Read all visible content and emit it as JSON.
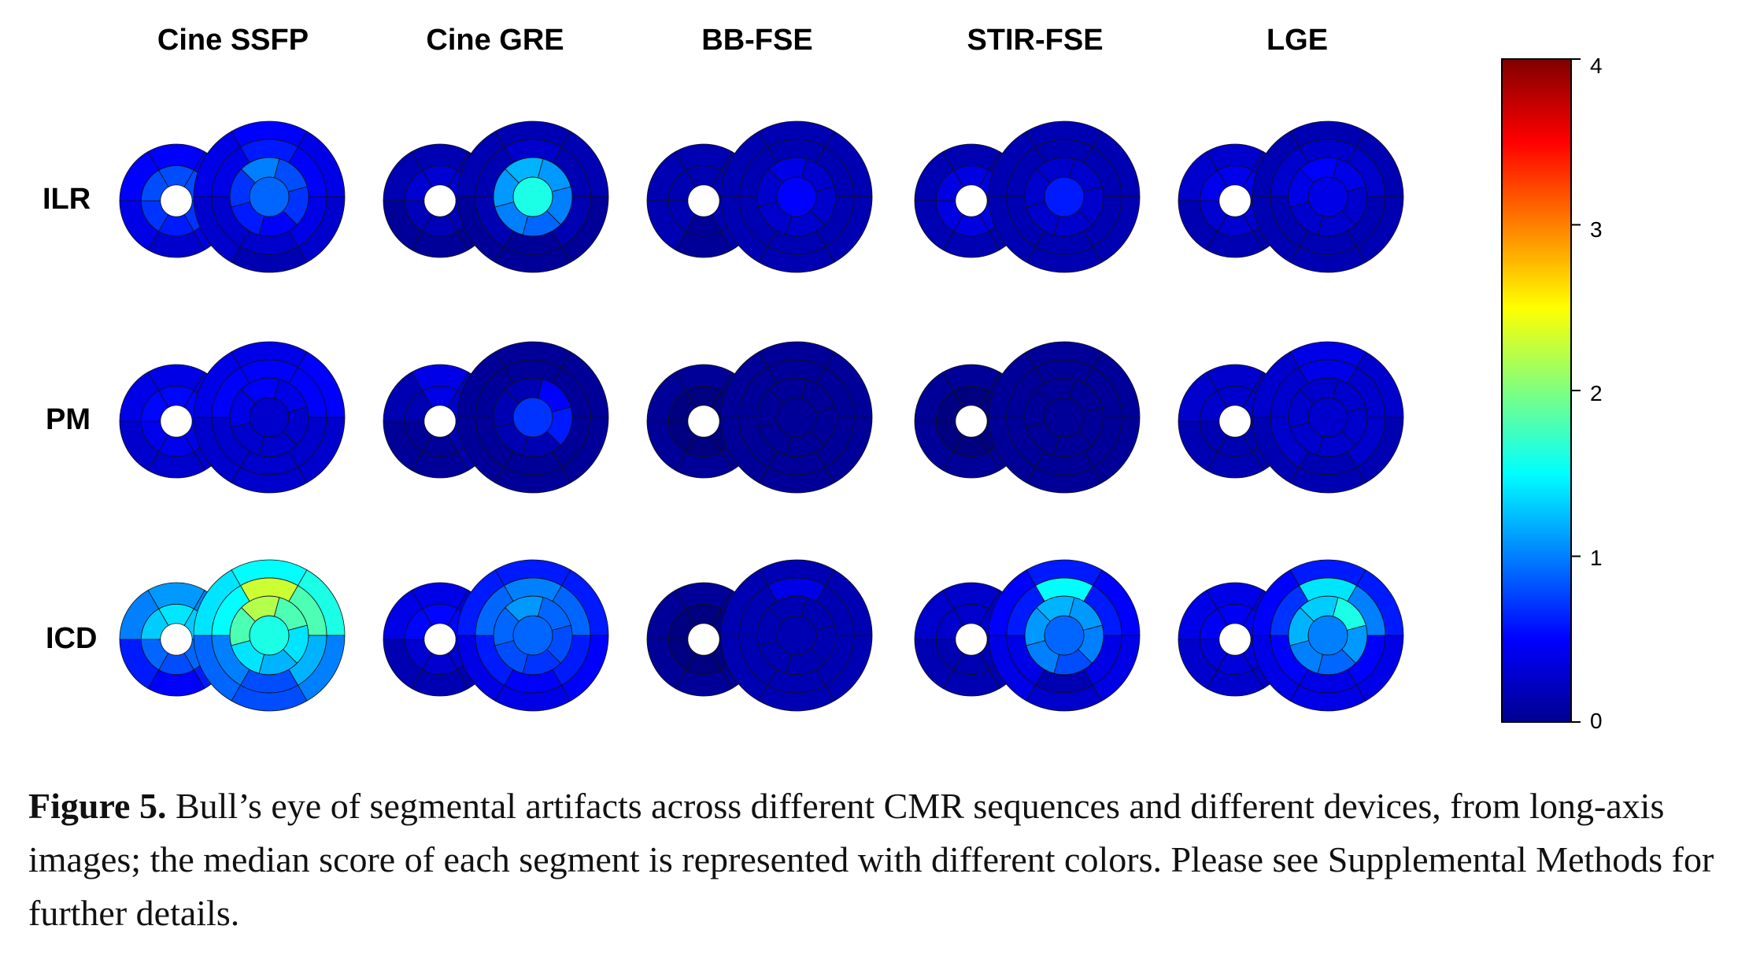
{
  "figure": {
    "column_labels": [
      "Cine SSFP",
      "Cine GRE",
      "BB-FSE",
      "STIR-FSE",
      "LGE"
    ],
    "row_labels": [
      "ILR",
      "PM",
      "ICD"
    ]
  },
  "colorbar": {
    "min": 0,
    "max": 4,
    "ticks": [
      "4",
      "3",
      "2",
      "1",
      "0"
    ],
    "colormap": "jet"
  },
  "chart_data": {
    "type": "heatmap",
    "description_source": "median artifact score per segment (short small disk = basal/outer plot, large disk = mid/apical plot)",
    "scale": [
      0,
      4
    ],
    "rows": [
      "ILR",
      "PM",
      "ICD"
    ],
    "columns": [
      "Cine SSFP",
      "Cine GRE",
      "BB-FSE",
      "STIR-FSE",
      "LGE"
    ],
    "cells": [
      [
        {
          "small": {
            "inner": 0.8,
            "ring": [
              0.5,
              0.5,
              0.4,
              0.3,
              0.4,
              0.5
            ]
          },
          "large": {
            "center": 0.9,
            "inner": [
              1.0,
              0.8,
              0.7,
              0.5,
              0.6,
              0.7
            ],
            "mid": [
              0.6,
              0.5,
              0.4,
              0.3,
              0.3,
              0.4
            ],
            "outer": [
              0.5,
              0.4,
              0.3,
              0.2,
              0.3,
              0.4
            ]
          }
        },
        {
          "small": {
            "inner": 0.5,
            "ring": [
              0.2,
              0.2,
              0.1,
              0.1,
              0.1,
              0.2
            ]
          },
          "large": {
            "center": 1.6,
            "inner": [
              1.2,
              1.1,
              1.0,
              0.9,
              1.0,
              1.1
            ],
            "mid": [
              0.3,
              0.2,
              0.2,
              0.1,
              0.2,
              0.2
            ],
            "outer": [
              0.2,
              0.2,
              0.1,
              0.1,
              0.1,
              0.2
            ]
          }
        },
        {
          "small": {
            "inner": 0.3,
            "ring": [
              0.2,
              0.2,
              0.2,
              0.1,
              0.2,
              0.2
            ]
          },
          "large": {
            "center": 0.5,
            "inner": [
              0.4,
              0.3,
              0.3,
              0.3,
              0.3,
              0.3
            ],
            "mid": [
              0.2,
              0.2,
              0.2,
              0.2,
              0.2,
              0.2
            ],
            "outer": [
              0.2,
              0.2,
              0.2,
              0.2,
              0.2,
              0.2
            ]
          }
        },
        {
          "small": {
            "inner": 0.6,
            "ring": [
              0.2,
              0.2,
              0.2,
              0.2,
              0.2,
              0.2
            ]
          },
          "large": {
            "center": 0.6,
            "inner": [
              0.3,
              0.3,
              0.3,
              0.3,
              0.3,
              0.3
            ],
            "mid": [
              0.2,
              0.2,
              0.2,
              0.2,
              0.2,
              0.2
            ],
            "outer": [
              0.2,
              0.2,
              0.2,
              0.2,
              0.2,
              0.2
            ]
          }
        },
        {
          "small": {
            "inner": 0.5,
            "ring": [
              0.3,
              0.3,
              0.2,
              0.2,
              0.2,
              0.3
            ]
          },
          "large": {
            "center": 0.4,
            "inner": [
              0.5,
              0.4,
              0.3,
              0.3,
              0.3,
              0.4
            ],
            "mid": [
              0.3,
              0.3,
              0.2,
              0.2,
              0.2,
              0.3
            ],
            "outer": [
              0.2,
              0.2,
              0.2,
              0.2,
              0.2,
              0.2
            ]
          }
        }
      ],
      [
        {
          "small": {
            "inner": 0.5,
            "ring": [
              0.4,
              0.4,
              0.3,
              0.3,
              0.3,
              0.4
            ]
          },
          "large": {
            "center": 0.3,
            "inner": [
              0.5,
              0.4,
              0.3,
              0.3,
              0.3,
              0.4
            ],
            "mid": [
              0.5,
              0.5,
              0.3,
              0.3,
              0.3,
              0.5
            ],
            "outer": [
              0.4,
              0.5,
              0.3,
              0.3,
              0.3,
              0.4
            ]
          }
        },
        {
          "small": {
            "inner": 0.3,
            "ring": [
              0.4,
              0.3,
              0.2,
              0.1,
              0.1,
              0.2
            ]
          },
          "large": {
            "center": 0.7,
            "inner": [
              0.2,
              0.5,
              0.6,
              0.2,
              0.2,
              0.2
            ],
            "mid": [
              0.1,
              0.1,
              0.1,
              0.1,
              0.1,
              0.1
            ],
            "outer": [
              0.1,
              0.1,
              0.1,
              0.1,
              0.1,
              0.1
            ]
          }
        },
        {
          "small": {
            "inner": 0.1,
            "ring": [
              0.1,
              0.1,
              0.1,
              0.1,
              0.1,
              0.1
            ]
          },
          "large": {
            "center": 0.1,
            "inner": [
              0.1,
              0.1,
              0.1,
              0.1,
              0.1,
              0.1
            ],
            "mid": [
              0.1,
              0.1,
              0.1,
              0.1,
              0.1,
              0.1
            ],
            "outer": [
              0.1,
              0.1,
              0.1,
              0.1,
              0.1,
              0.1
            ]
          }
        },
        {
          "small": {
            "inner": 0.1,
            "ring": [
              0.1,
              0.1,
              0.1,
              0.1,
              0.1,
              0.1
            ]
          },
          "large": {
            "center": 0.1,
            "inner": [
              0.1,
              0.1,
              0.1,
              0.1,
              0.1,
              0.1
            ],
            "mid": [
              0.1,
              0.1,
              0.1,
              0.1,
              0.1,
              0.1
            ],
            "outer": [
              0.1,
              0.1,
              0.1,
              0.1,
              0.1,
              0.1
            ]
          }
        },
        {
          "small": {
            "inner": 0.3,
            "ring": [
              0.3,
              0.3,
              0.2,
              0.2,
              0.2,
              0.3
            ]
          },
          "large": {
            "center": 0.3,
            "inner": [
              0.3,
              0.3,
              0.3,
              0.3,
              0.3,
              0.3
            ],
            "mid": [
              0.4,
              0.3,
              0.3,
              0.2,
              0.3,
              0.3
            ],
            "outer": [
              0.4,
              0.3,
              0.2,
              0.2,
              0.2,
              0.3
            ]
          }
        }
      ],
      [
        {
          "small": {
            "inner": 0.8,
            "ring": [
              1.1,
              1.0,
              0.6,
              0.5,
              0.6,
              1.0
            ]
          },
          "large": {
            "center": 1.6,
            "inner": [
              2.2,
              1.8,
              1.4,
              1.2,
              1.4,
              1.8
            ],
            "mid": [
              2.3,
              1.8,
              1.2,
              0.8,
              1.0,
              1.5
            ],
            "outer": [
              1.5,
              1.6,
              1.0,
              0.8,
              0.9,
              1.4
            ]
          }
        },
        {
          "small": {
            "inner": 0.5,
            "ring": [
              0.4,
              0.4,
              0.2,
              0.2,
              0.2,
              0.4
            ]
          },
          "large": {
            "center": 0.9,
            "inner": [
              1.1,
              0.9,
              0.8,
              0.7,
              0.8,
              0.9
            ],
            "mid": [
              1.0,
              0.9,
              0.6,
              0.5,
              0.6,
              0.9
            ],
            "outer": [
              0.6,
              0.6,
              0.5,
              0.4,
              0.4,
              0.6
            ]
          }
        },
        {
          "small": {
            "inner": 0.1,
            "ring": [
              0.1,
              0.1,
              0.1,
              0.1,
              0.1,
              0.1
            ]
          },
          "large": {
            "center": 0.2,
            "inner": [
              0.2,
              0.2,
              0.2,
              0.2,
              0.2,
              0.2
            ],
            "mid": [
              0.4,
              0.2,
              0.2,
              0.2,
              0.2,
              0.2
            ],
            "outer": [
              0.2,
              0.2,
              0.2,
              0.2,
              0.2,
              0.2
            ]
          }
        },
        {
          "small": {
            "inner": 0.3,
            "ring": [
              0.3,
              0.3,
              0.2,
              0.2,
              0.2,
              0.3
            ]
          },
          "large": {
            "center": 0.9,
            "inner": [
              1.2,
              1.1,
              1.0,
              0.8,
              1.0,
              1.1
            ],
            "mid": [
              1.5,
              0.6,
              0.4,
              0.2,
              0.4,
              0.6
            ],
            "outer": [
              0.6,
              0.5,
              0.4,
              0.3,
              0.4,
              0.5
            ]
          }
        },
        {
          "small": {
            "inner": 0.4,
            "ring": [
              0.4,
              0.4,
              0.3,
              0.3,
              0.3,
              0.4
            ]
          },
          "large": {
            "center": 1.0,
            "inner": [
              1.3,
              1.6,
              1.1,
              0.9,
              1.0,
              1.2
            ],
            "mid": [
              1.4,
              1.0,
              0.5,
              0.4,
              0.5,
              0.7
            ],
            "outer": [
              0.6,
              0.6,
              0.4,
              0.4,
              0.4,
              0.5
            ]
          }
        }
      ]
    ]
  },
  "caption": {
    "label": "Figure 5.",
    "text": " Bull’s eye of segmental artifacts across different CMR sequences and different devices, from long-axis images; the median score of each segment is represented with different colors. Please see Supplemental Methods for further details."
  }
}
